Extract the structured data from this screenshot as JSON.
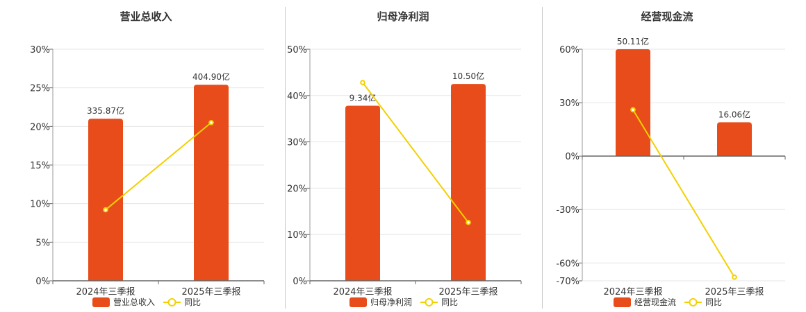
{
  "colors": {
    "bar": "#E84C1A",
    "line": "#F2D100",
    "grid": "#e6e6e6",
    "axis": "#666666"
  },
  "chart_data": [
    {
      "type": "bar",
      "title": "营业总收入",
      "categories": [
        "2024年三季报",
        "2025年三季报"
      ],
      "bar_series": {
        "name": "营业总收入",
        "values": [
          21.0,
          25.4
        ],
        "labels": [
          "335.87亿",
          "404.90亿"
        ]
      },
      "line_series": {
        "name": "同比",
        "values": [
          9.2,
          20.5
        ]
      },
      "ylim": [
        0,
        30
      ],
      "yticks": [
        0,
        5,
        10,
        15,
        20,
        25,
        30
      ],
      "ytick_labels": [
        "0%",
        "5%",
        "10%",
        "15%",
        "20%",
        "25%",
        "30%"
      ],
      "grid": true,
      "legend": "bottom"
    },
    {
      "type": "bar",
      "title": "归母净利润",
      "categories": [
        "2024年三季报",
        "2025年三季报"
      ],
      "bar_series": {
        "name": "归母净利润",
        "values": [
          37.8,
          42.5
        ],
        "labels": [
          "9.34亿",
          "10.50亿"
        ]
      },
      "line_series": {
        "name": "同比",
        "values": [
          42.8,
          12.6
        ]
      },
      "ylim": [
        0,
        50
      ],
      "yticks": [
        0,
        10,
        20,
        30,
        40,
        50
      ],
      "ytick_labels": [
        "0%",
        "10%",
        "20%",
        "30%",
        "40%",
        "50%"
      ],
      "grid": true,
      "legend": "bottom"
    },
    {
      "type": "bar",
      "title": "经营现金流",
      "categories": [
        "2024年三季报",
        "2025年三季报"
      ],
      "bar_series": {
        "name": "经营现金流",
        "values": [
          60,
          19
        ],
        "labels": [
          "50.11亿",
          "16.06亿"
        ]
      },
      "line_series": {
        "name": "同比",
        "values": [
          26,
          -68
        ]
      },
      "ylim": [
        -70,
        60
      ],
      "yticks": [
        -70,
        -60,
        -30,
        0,
        30,
        60
      ],
      "ytick_labels": [
        "-70%",
        "-60%",
        "-30%",
        "0%",
        "30%",
        "60%"
      ],
      "grid": true,
      "legend": "bottom"
    }
  ]
}
